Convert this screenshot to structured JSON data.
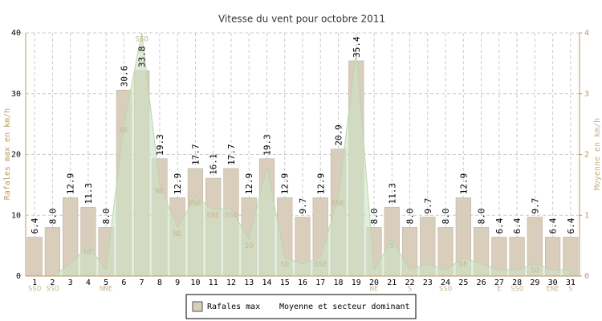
{
  "chart_data": {
    "type": "bar",
    "title": "Vitesse du vent pour octobre 2011",
    "ylabel": "Rafales max en km/h",
    "y2label": "Moyenne en km/h",
    "categories": [
      "1",
      "2",
      "3",
      "4",
      "5",
      "6",
      "7",
      "8",
      "9",
      "10",
      "11",
      "12",
      "13",
      "14",
      "15",
      "16",
      "17",
      "18",
      "19",
      "20",
      "21",
      "22",
      "23",
      "24",
      "25",
      "26",
      "27",
      "28",
      "29",
      "30",
      "31"
    ],
    "series": [
      {
        "name": "Rafales max",
        "color": "#d9cdbb",
        "values": [
          6.4,
          8.0,
          12.9,
          11.3,
          8.0,
          30.6,
          33.8,
          19.3,
          12.9,
          17.7,
          16.1,
          17.7,
          12.9,
          19.3,
          12.9,
          9.7,
          12.9,
          20.9,
          35.4,
          8.0,
          11.3,
          8.0,
          9.7,
          8.0,
          12.9,
          8.0,
          6.4,
          6.4,
          9.7,
          6.4,
          6.4
        ],
        "value_labels": [
          "6.4",
          "8.0",
          "12.9",
          "11.3",
          "8.0",
          "30.6",
          "33.8",
          "19.3",
          "12.9",
          "17.7",
          "16.1",
          "17.7",
          "12.9",
          "19.3",
          "12.9",
          "9.7",
          "12.9",
          "20.9",
          "35.4",
          "8.0",
          "11.3",
          "8.0",
          "9.7",
          "8.0",
          "12.9",
          "8.0",
          "6.4",
          "6.4",
          "9.7",
          "6.4",
          "6.4"
        ]
      },
      {
        "name": "Moyenne et secteur dominant",
        "color": "#cfe3c6",
        "axis": "y2",
        "values": [
          0,
          0,
          0.2,
          0.5,
          0.1,
          2.5,
          4.0,
          1.5,
          0.8,
          1.3,
          1.1,
          1.1,
          0.6,
          1.8,
          0.3,
          0.2,
          0.3,
          1.3,
          3.7,
          0.1,
          0.6,
          0.1,
          0.2,
          0.1,
          0.3,
          0.2,
          0.1,
          0.1,
          0.2,
          0.1,
          0.1
        ],
        "labels": [
          "SSO",
          "SSO",
          null,
          "NE",
          "NNE",
          "NE",
          "SSO",
          "NE",
          "NE",
          "ENE",
          "ENE",
          "SSO",
          "SO",
          null,
          "SO",
          null,
          "SSE",
          "ENE",
          null,
          "NE",
          "S",
          "S",
          null,
          "SSO",
          "NE",
          null,
          "E",
          "SSO",
          "SO",
          "ENE",
          "S"
        ]
      }
    ],
    "ylim": [
      0,
      40
    ],
    "yticks": [
      0,
      10,
      20,
      30,
      40
    ],
    "y2lim": [
      0,
      4
    ],
    "y2ticks": [
      0,
      1,
      2,
      3,
      4
    ],
    "grid": true
  }
}
